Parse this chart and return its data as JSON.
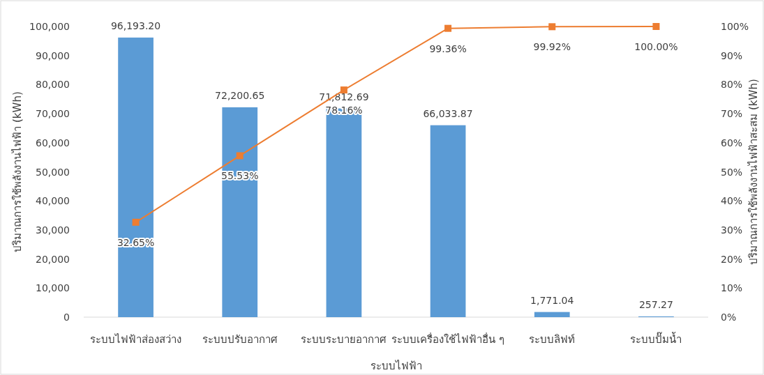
{
  "chart_data": {
    "type": "bar",
    "xlabel": "ระบบไฟฟ้า",
    "ylabel": "ปริมาณการใช้พลังงานไฟฟ้า (kWh)",
    "y2label": "ปริมาณการใช้พลังงานไฟฟ้าสะสม (kWh)",
    "categories": [
      "ระบบไฟฟ้าส่องสว่าง",
      "ระบบปรับอากาศ",
      "ระบบระบายอากาศ",
      "ระบบเครื่องใช้ไฟฟ้าอื่น ๆ",
      "ระบบลิฟท์",
      "ระบบปั๊มน้ำ"
    ],
    "series": [
      {
        "color": "#5b9bd5",
        "values": [
          96193.2,
          72200.65,
          71812.69,
          66033.87,
          1771.04,
          257.27
        ],
        "value_labels": [
          "96,193.20",
          "72,200.65",
          "71,812.69",
          "66,033.87",
          "1,771.04",
          "257.27"
        ]
      },
      {
        "type": "line",
        "axis": "y2",
        "color": "#ed7d31",
        "marker": "square",
        "values": [
          32.65,
          55.53,
          78.16,
          99.36,
          99.92,
          100.0
        ],
        "value_labels": [
          "32.65%",
          "55.53%",
          "78.16%",
          "99.36%",
          "99.92%",
          "100.00%"
        ]
      }
    ],
    "ylim": [
      0,
      100000
    ],
    "yticks": [
      0,
      {
        "value": 10000,
        "label": "10,000"
      },
      {
        "value": 20000,
        "label": "20,000"
      },
      {
        "value": 30000,
        "label": "30,000"
      },
      {
        "value": 40000,
        "label": "40,000"
      },
      {
        "value": 50000,
        "label": "50,000"
      },
      {
        "value": 60000,
        "label": "60,000"
      },
      {
        "value": 70000,
        "label": "70,000"
      },
      {
        "value": 80000,
        "label": "80,000"
      },
      {
        "value": 90000,
        "label": "90,000"
      },
      {
        "value": 100000,
        "label": "100,000"
      }
    ],
    "y2lim": [
      0,
      100
    ],
    "y2ticks": [
      {
        "value": 0,
        "label": "0%"
      },
      {
        "value": 10,
        "label": "10%"
      },
      {
        "value": 20,
        "label": "20%"
      },
      {
        "value": 30,
        "label": "30%"
      },
      {
        "value": 40,
        "label": "40%"
      },
      {
        "value": 50,
        "label": "50%"
      },
      {
        "value": 60,
        "label": "60%"
      },
      {
        "value": 70,
        "label": "70%"
      },
      {
        "value": 80,
        "label": "80%"
      },
      {
        "value": 90,
        "label": "90%"
      },
      {
        "value": 100,
        "label": "100%"
      }
    ]
  }
}
